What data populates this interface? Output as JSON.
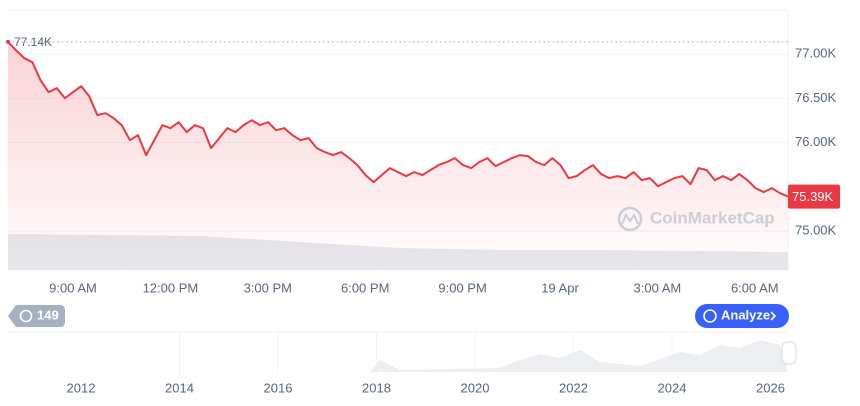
{
  "chart_data": {
    "type": "line",
    "series": [
      {
        "name": "Price",
        "color": "#ea3943",
        "values": [
          77136,
          77045,
          76955,
          76910,
          76706,
          76571,
          76616,
          76503,
          76571,
          76638,
          76525,
          76311,
          76333,
          76277,
          76198,
          76028,
          76085,
          75859,
          76028,
          76198,
          76164,
          76232,
          76119,
          76198,
          76164,
          75938,
          76051,
          76164,
          76119,
          76198,
          76254,
          76198,
          76232,
          76141,
          76164,
          76085,
          76028,
          76051,
          75938,
          75893,
          75859,
          75893,
          75825,
          75746,
          75633,
          75554,
          75633,
          75712,
          75667,
          75622,
          75667,
          75633,
          75690,
          75746,
          75780,
          75825,
          75746,
          75712,
          75780,
          75825,
          75735,
          75780,
          75825,
          75859,
          75848,
          75780,
          75746,
          75825,
          75746,
          75599,
          75622,
          75690,
          75746,
          75645,
          75599,
          75622,
          75599,
          75667,
          75576,
          75599,
          75508,
          75554,
          75599,
          75622,
          75531,
          75712,
          75690,
          75576,
          75622,
          75576,
          75645,
          75576,
          75486,
          75441,
          75486,
          75430,
          75390
        ]
      }
    ],
    "xticks": [
      "9:00 AM",
      "12:00 PM",
      "3:00 PM",
      "6:00 PM",
      "9:00 PM",
      "19 Apr",
      "3:00 AM",
      "6:00 AM"
    ],
    "ylim": [
      74560,
      77500
    ],
    "yticks": [
      {
        "value": 75000,
        "label": "75.00K"
      },
      {
        "value": 76000,
        "label": "76.00K"
      },
      {
        "value": 76500,
        "label": "76.50K"
      },
      {
        "value": 77000,
        "label": "77.00K"
      }
    ],
    "grid": true,
    "high_line": {
      "value": 77140,
      "label": "77.14K"
    },
    "last_price": {
      "value": 75390,
      "label": "75.39K"
    },
    "watermark": "CoinMarketCap",
    "navigator_years": [
      "2012",
      "2014",
      "2016",
      "2018",
      "2020",
      "2022",
      "2024",
      "2026"
    ]
  },
  "controls": {
    "history_badge": "149",
    "analyze_button": "Analyze"
  }
}
